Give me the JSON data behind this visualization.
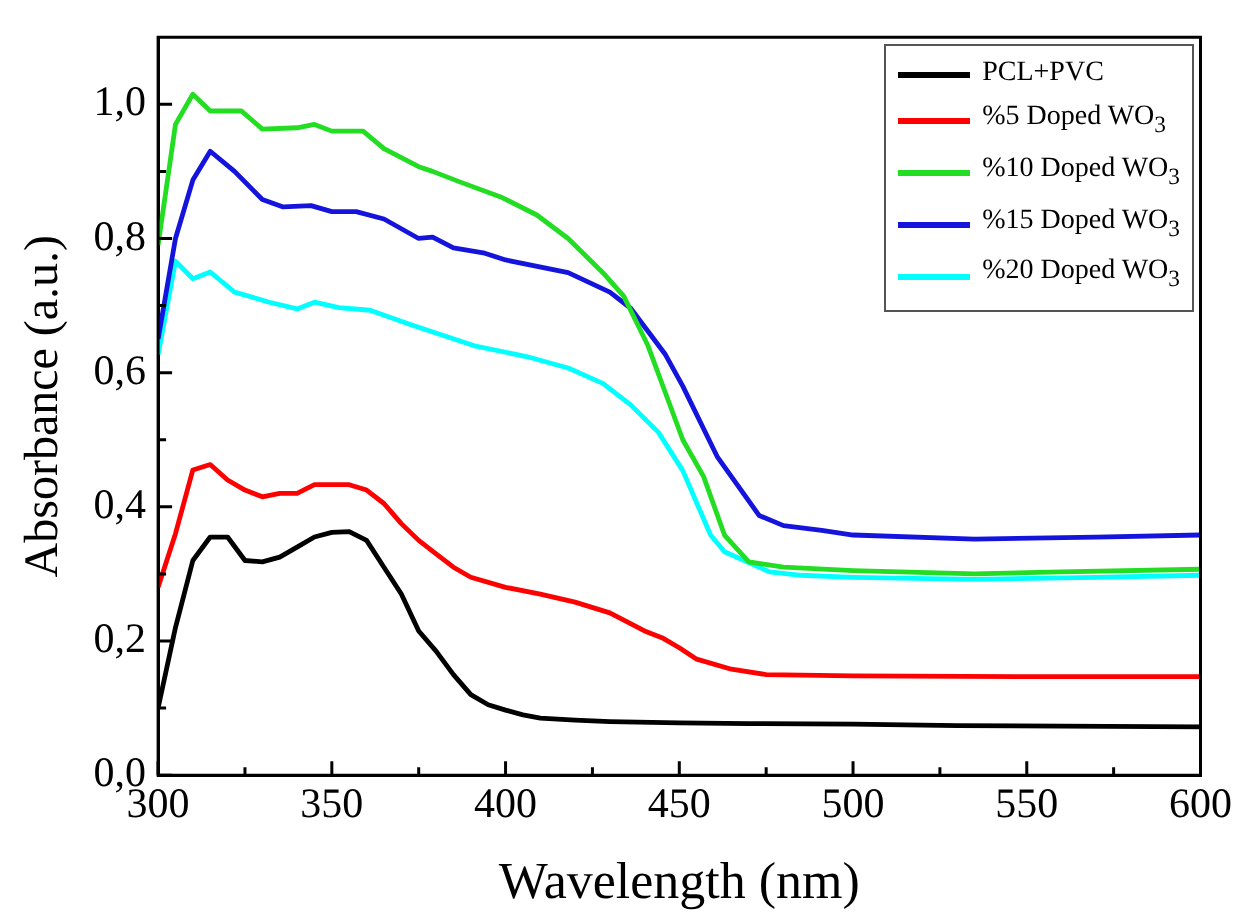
{
  "chart_data": {
    "type": "line",
    "xlabel": "Wavelength (nm)",
    "ylabel": "Absorbance (a.u.)",
    "xlim": [
      300,
      600
    ],
    "ylim": [
      0,
      1.1
    ],
    "xticks": [
      300,
      {
        "value": 325,
        "label": null
      },
      350,
      {
        "value": 375,
        "label": null
      },
      400,
      {
        "value": 425,
        "label": null
      },
      450,
      {
        "value": 475,
        "label": null
      },
      500,
      {
        "value": 525,
        "label": null
      },
      550,
      {
        "value": 575,
        "label": null
      },
      600
    ],
    "yticks": [
      {
        "value": 0,
        "label": "0,0"
      },
      {
        "value": 0.1,
        "label": null
      },
      {
        "value": 0.2,
        "label": "0,2"
      },
      {
        "value": 0.3,
        "label": null
      },
      {
        "value": 0.4,
        "label": "0,4"
      },
      {
        "value": 0.5,
        "label": null
      },
      {
        "value": 0.6,
        "label": "0,6"
      },
      {
        "value": 0.7,
        "label": null
      },
      {
        "value": 0.8,
        "label": "0,8"
      },
      {
        "value": 0.9,
        "label": null
      },
      {
        "value": 1.0,
        "label": "1,0"
      }
    ],
    "grid": false,
    "legend": "top right",
    "marker": "none",
    "line_style": "solid",
    "series": [
      {
        "name": "PCL+PVC",
        "color": "#000000",
        "x": [
          300,
          305,
          310,
          315,
          320,
          325,
          330,
          335,
          340,
          345,
          350,
          355,
          360,
          365,
          370,
          375,
          380,
          385,
          390,
          395,
          400,
          405,
          410,
          420,
          430,
          450,
          470,
          500,
          530,
          560,
          600
        ],
        "values": [
          0.1,
          0.22,
          0.32,
          0.355,
          0.355,
          0.32,
          0.318,
          0.325,
          0.34,
          0.355,
          0.362,
          0.363,
          0.35,
          0.31,
          0.27,
          0.215,
          0.185,
          0.15,
          0.12,
          0.105,
          0.097,
          0.09,
          0.085,
          0.082,
          0.08,
          0.078,
          0.077,
          0.076,
          0.074,
          0.073,
          0.072
        ]
      },
      {
        "name": "%5 Doped WO$_{3}$",
        "color": "#ff0000",
        "x": [
          300,
          305,
          310,
          315,
          320,
          325,
          330,
          335,
          340,
          345,
          350,
          355,
          360,
          365,
          370,
          375,
          380,
          385,
          390,
          400,
          410,
          420,
          430,
          440,
          445,
          450,
          455,
          465,
          475,
          500,
          550,
          600
        ],
        "values": [
          0.28,
          0.36,
          0.455,
          0.463,
          0.44,
          0.425,
          0.415,
          0.42,
          0.42,
          0.433,
          0.433,
          0.433,
          0.425,
          0.405,
          0.375,
          0.35,
          0.33,
          0.31,
          0.295,
          0.28,
          0.27,
          0.258,
          0.242,
          0.215,
          0.205,
          0.19,
          0.173,
          0.158,
          0.15,
          0.148,
          0.147,
          0.147
        ]
      },
      {
        "name": "%10 Doped WO$_{3}$",
        "color": "#22dd22",
        "x": [
          300,
          305,
          310,
          315,
          324,
          330,
          340,
          345,
          350,
          359,
          365,
          375,
          379,
          387,
          399,
          409,
          418,
          428,
          434,
          441,
          446,
          451,
          457,
          463,
          470,
          480,
          500,
          535,
          560,
          600
        ],
        "values": [
          0.79,
          0.97,
          1.015,
          0.99,
          0.99,
          0.963,
          0.965,
          0.97,
          0.96,
          0.96,
          0.934,
          0.907,
          0.9,
          0.884,
          0.861,
          0.835,
          0.8,
          0.749,
          0.714,
          0.64,
          0.57,
          0.5,
          0.445,
          0.358,
          0.318,
          0.31,
          0.305,
          0.3,
          0.303,
          0.307
        ]
      },
      {
        "name": "%15 Doped WO$_{3}$",
        "color": "#1414dc",
        "x": [
          300,
          305,
          310,
          315,
          322,
          330,
          336,
          344,
          350,
          357,
          365,
          375,
          379,
          385,
          394,
          400,
          418,
          430,
          436,
          446,
          451,
          461,
          473,
          480,
          491,
          500,
          535,
          570,
          600
        ],
        "values": [
          0.65,
          0.8,
          0.887,
          0.93,
          0.9,
          0.858,
          0.847,
          0.849,
          0.84,
          0.84,
          0.829,
          0.8,
          0.802,
          0.786,
          0.778,
          0.768,
          0.749,
          0.72,
          0.696,
          0.627,
          0.58,
          0.474,
          0.387,
          0.372,
          0.365,
          0.358,
          0.352,
          0.355,
          0.358
        ]
      },
      {
        "name": "%20 Doped WO$_{3}$",
        "color": "#00ffff",
        "x": [
          300,
          305,
          310,
          315,
          322,
          332,
          340,
          345,
          352,
          361,
          373,
          391,
          406,
          418,
          428,
          436,
          444,
          451,
          459,
          463,
          476,
          485,
          500,
          535,
          570,
          600
        ],
        "values": [
          0.627,
          0.766,
          0.74,
          0.75,
          0.72,
          0.705,
          0.695,
          0.705,
          0.697,
          0.693,
          0.671,
          0.64,
          0.624,
          0.607,
          0.584,
          0.552,
          0.511,
          0.454,
          0.358,
          0.333,
          0.303,
          0.298,
          0.295,
          0.292,
          0.295,
          0.298
        ]
      }
    ]
  }
}
